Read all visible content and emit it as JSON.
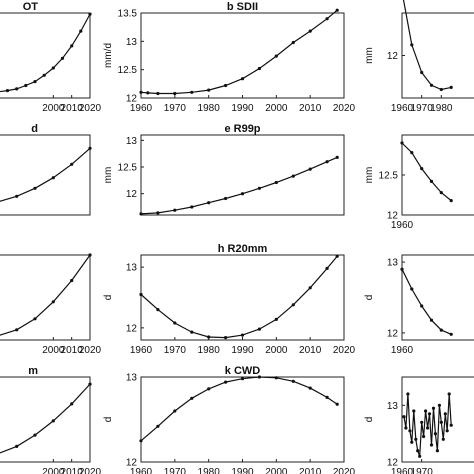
{
  "chart_data": [
    {
      "panel": "a",
      "type": "line",
      "title": "OT",
      "ylabel": "",
      "xlim": [
        1960,
        2020
      ],
      "ylim": [
        12,
        13.5
      ],
      "x_ticks": [
        2000,
        2010,
        2020
      ],
      "y_ticks": [],
      "series": [
        {
          "x": [
            1960,
            1965,
            1970,
            1975,
            1980,
            1985,
            1990,
            1995,
            2000,
            2005,
            2010,
            2015,
            2020
          ],
          "y": [
            12.1,
            12.1,
            12.11,
            12.13,
            12.16,
            12.22,
            12.29,
            12.4,
            12.53,
            12.7,
            12.92,
            13.18,
            13.48
          ]
        }
      ]
    },
    {
      "panel": "b",
      "type": "line",
      "title": "b SDII",
      "ylabel": "mm/d",
      "xlim": [
        1960,
        2020
      ],
      "ylim": [
        12,
        13.5
      ],
      "x_ticks": [
        1960,
        1970,
        1980,
        1990,
        2000,
        2010,
        2020
      ],
      "y_ticks": [
        12,
        12.5,
        13,
        13.5
      ],
      "series": [
        {
          "x": [
            1960,
            1962,
            1965,
            1970,
            1975,
            1980,
            1985,
            1990,
            1995,
            2000,
            2005,
            2010,
            2015,
            2018
          ],
          "y": [
            12.1,
            12.09,
            12.08,
            12.08,
            12.1,
            12.14,
            12.22,
            12.34,
            12.52,
            12.74,
            12.98,
            13.18,
            13.4,
            13.55
          ]
        }
      ]
    },
    {
      "panel": "c",
      "type": "line",
      "title": "",
      "ylabel": "mm",
      "xlim": [
        1960,
        2020
      ],
      "ylim": [
        11.8,
        12.2
      ],
      "x_ticks": [
        1960,
        1970,
        1980
      ],
      "y_ticks": [
        12
      ],
      "series": [
        {
          "x": [
            1960,
            1965,
            1970,
            1975,
            1980,
            1985
          ],
          "y": [
            12.3,
            12.05,
            11.92,
            11.86,
            11.84,
            11.85
          ]
        }
      ]
    },
    {
      "panel": "d",
      "type": "line",
      "title": "d",
      "ylabel": "",
      "xlim": [
        1960,
        2020
      ],
      "ylim": [
        12,
        13.5
      ],
      "x_ticks": [],
      "y_ticks": [],
      "series": [
        {
          "x": [
            1960,
            1970,
            1980,
            1990,
            2000,
            2010,
            2020
          ],
          "y": [
            12.2,
            12.25,
            12.35,
            12.5,
            12.7,
            12.95,
            13.25
          ]
        }
      ]
    },
    {
      "panel": "e",
      "type": "line",
      "title": "e R99p",
      "ylabel": "mm",
      "xlim": [
        1960,
        2020
      ],
      "ylim": [
        11.6,
        13.1
      ],
      "x_ticks": [],
      "y_ticks": [
        12,
        12.5,
        13
      ],
      "series": [
        {
          "x": [
            1960,
            1965,
            1970,
            1975,
            1980,
            1985,
            1990,
            1995,
            2000,
            2005,
            2010,
            2015,
            2018
          ],
          "y": [
            11.62,
            11.64,
            11.69,
            11.75,
            11.83,
            11.91,
            12.0,
            12.1,
            12.21,
            12.33,
            12.46,
            12.6,
            12.68
          ]
        }
      ]
    },
    {
      "panel": "f",
      "type": "line",
      "title": "",
      "ylabel": "mm",
      "xlim": [
        1960,
        2020
      ],
      "ylim": [
        12,
        13
      ],
      "x_ticks": [
        1960
      ],
      "y_ticks": [
        12,
        12.5
      ],
      "series": [
        {
          "x": [
            1960,
            1965,
            1970,
            1975,
            1980,
            1985
          ],
          "y": [
            12.9,
            12.78,
            12.58,
            12.42,
            12.28,
            12.18
          ]
        }
      ]
    },
    {
      "panel": "g",
      "type": "line",
      "title": "",
      "ylabel": "",
      "xlim": [
        1960,
        2020
      ],
      "ylim": [
        12,
        13
      ],
      "x_ticks": [
        2000,
        2010,
        2020
      ],
      "y_ticks": [],
      "series": [
        {
          "x": [
            1960,
            1970,
            1980,
            1990,
            2000,
            2010,
            2020
          ],
          "y": [
            12.0,
            12.05,
            12.12,
            12.25,
            12.45,
            12.7,
            13.0
          ]
        }
      ]
    },
    {
      "panel": "h",
      "type": "line",
      "title": "h R20mm",
      "ylabel": "d",
      "xlim": [
        1960,
        2020
      ],
      "ylim": [
        11.8,
        13.2
      ],
      "x_ticks": [
        1960,
        1970,
        1980,
        1990,
        2000,
        2010,
        2020
      ],
      "y_ticks": [
        12,
        13
      ],
      "series": [
        {
          "x": [
            1960,
            1965,
            1970,
            1975,
            1980,
            1985,
            1990,
            1995,
            2000,
            2005,
            2010,
            2015,
            2018
          ],
          "y": [
            12.55,
            12.3,
            12.08,
            11.93,
            11.85,
            11.84,
            11.88,
            11.98,
            12.14,
            12.38,
            12.66,
            12.98,
            13.18
          ]
        }
      ]
    },
    {
      "panel": "i",
      "type": "line",
      "title": "",
      "ylabel": "d",
      "xlim": [
        1960,
        2020
      ],
      "ylim": [
        11.9,
        13.1
      ],
      "x_ticks": [
        1960
      ],
      "y_ticks": [
        12,
        13
      ],
      "series": [
        {
          "x": [
            1960,
            1965,
            1970,
            1975,
            1980,
            1985
          ],
          "y": [
            12.9,
            12.62,
            12.38,
            12.18,
            12.04,
            11.98
          ]
        }
      ]
    },
    {
      "panel": "j",
      "type": "line",
      "title": "m",
      "ylabel": "",
      "xlim": [
        1960,
        2020
      ],
      "ylim": [
        11.9,
        13.1
      ],
      "x_ticks": [
        2000,
        2010,
        2020
      ],
      "y_ticks": [],
      "series": [
        {
          "x": [
            1960,
            1970,
            1980,
            1990,
            2000,
            2010,
            2020
          ],
          "y": [
            11.95,
            12.02,
            12.12,
            12.28,
            12.48,
            12.72,
            13.0
          ]
        }
      ]
    },
    {
      "panel": "k",
      "type": "line",
      "title": "k CWD",
      "ylabel": "d",
      "xlim": [
        1960,
        2020
      ],
      "ylim": [
        12,
        13
      ],
      "x_ticks": [
        1960,
        1970,
        1980,
        1990,
        2000,
        2010,
        2020
      ],
      "y_ticks": [
        12,
        13
      ],
      "series": [
        {
          "x": [
            1960,
            1965,
            1970,
            1975,
            1980,
            1985,
            1990,
            1995,
            2000,
            2005,
            2010,
            2015,
            2018
          ],
          "y": [
            12.25,
            12.42,
            12.6,
            12.75,
            12.86,
            12.94,
            12.98,
            13.0,
            12.99,
            12.95,
            12.87,
            12.76,
            12.68
          ]
        }
      ]
    },
    {
      "panel": "l",
      "type": "line",
      "title": "",
      "ylabel": "d",
      "xlim": [
        1960,
        2020
      ],
      "ylim": [
        12,
        13.5
      ],
      "x_ticks": [
        1960,
        1970
      ],
      "y_ticks": [
        12,
        13
      ],
      "series": [
        {
          "x": [
            1961,
            1962,
            1963,
            1964,
            1965,
            1966,
            1967,
            1968,
            1969,
            1970,
            1971,
            1972,
            1973,
            1974,
            1975,
            1976,
            1977,
            1978,
            1979,
            1980,
            1981,
            1982,
            1983,
            1984,
            1985
          ],
          "y": [
            12.8,
            12.6,
            13.2,
            12.55,
            12.35,
            12.9,
            12.4,
            12.2,
            12.1,
            12.7,
            12.45,
            12.9,
            12.6,
            12.85,
            12.3,
            12.95,
            12.5,
            12.2,
            13.0,
            12.7,
            12.4,
            12.85,
            12.55,
            13.2,
            12.65
          ]
        }
      ]
    }
  ]
}
